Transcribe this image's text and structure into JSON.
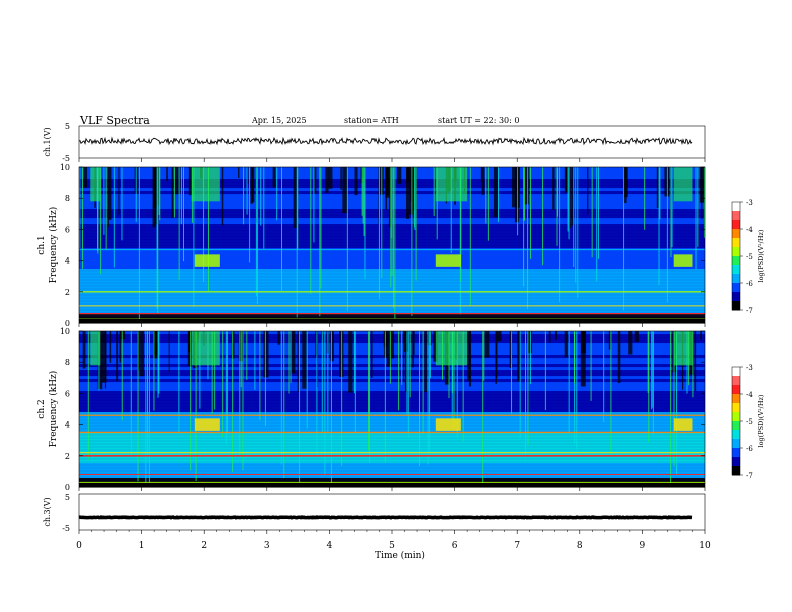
{
  "header": {
    "title": "VLF  Spectra",
    "date": "Apr. 15, 2025",
    "station": "station= ATH",
    "start": "start  UT  =    22: 30: 0"
  },
  "chart_data": [
    {
      "type": "line",
      "panel": "ch1-waveform",
      "ylabel": "ch.1(V)",
      "yticks": [
        "5",
        "-5"
      ],
      "ylim": [
        -5,
        5
      ],
      "x_range_min": [
        0,
        9.8
      ],
      "trace_color": "#000000",
      "approx_level": 0.3
    },
    {
      "type": "heatmap",
      "panel": "ch1-spectrogram",
      "ylabel": "ch.1\nFrequency  (kHz)",
      "ylabel_lines": [
        "ch.1",
        "Frequency  (kHz)"
      ],
      "yticks": [
        "0",
        "2",
        "4",
        "6",
        "8",
        "10"
      ],
      "ylim": [
        0,
        10
      ],
      "xlim": [
        0,
        10
      ],
      "colorbar": {
        "label": "log(PSD)(V²/Hz)",
        "ticks": [
          "-3",
          "-4",
          "-5",
          "-6",
          "-7"
        ],
        "range": [
          -7,
          -3
        ]
      }
    },
    {
      "type": "heatmap",
      "panel": "ch2-spectrogram",
      "ylabel": "ch.2\nFrequency  (kHz)",
      "ylabel_lines": [
        "ch.2",
        "Frequency  (kHz)"
      ],
      "yticks": [
        "0",
        "2",
        "4",
        "6",
        "8",
        "10"
      ],
      "ylim": [
        0,
        10
      ],
      "xlim": [
        0,
        10
      ],
      "colorbar": {
        "label": "log(PSD)(V²/Hz)",
        "ticks": [
          "-3",
          "-4",
          "-5",
          "-6",
          "-7"
        ],
        "range": [
          -7,
          -3
        ]
      }
    },
    {
      "type": "line",
      "panel": "ch3-waveform",
      "ylabel": "ch.3(V)",
      "yticks": [
        "5",
        "-5"
      ],
      "ylim": [
        -5,
        5
      ],
      "x_range_min": [
        0,
        9.8
      ],
      "trace_color": "#000000",
      "approx_level": -1.5
    }
  ],
  "xaxis": {
    "label": "Time  (min)",
    "ticks": [
      "0",
      "1",
      "2",
      "3",
      "4",
      "5",
      "6",
      "7",
      "8",
      "9",
      "10"
    ],
    "xlim": [
      0,
      10
    ]
  },
  "colors": {
    "colormap": [
      "#000000",
      "#0000aa",
      "#0044ff",
      "#00aaff",
      "#00e0e0",
      "#22ee55",
      "#aaff00",
      "#ffe000",
      "#ff8800",
      "#ff2020",
      "#ff6060",
      "#ffffff"
    ],
    "axis": "#000000"
  }
}
